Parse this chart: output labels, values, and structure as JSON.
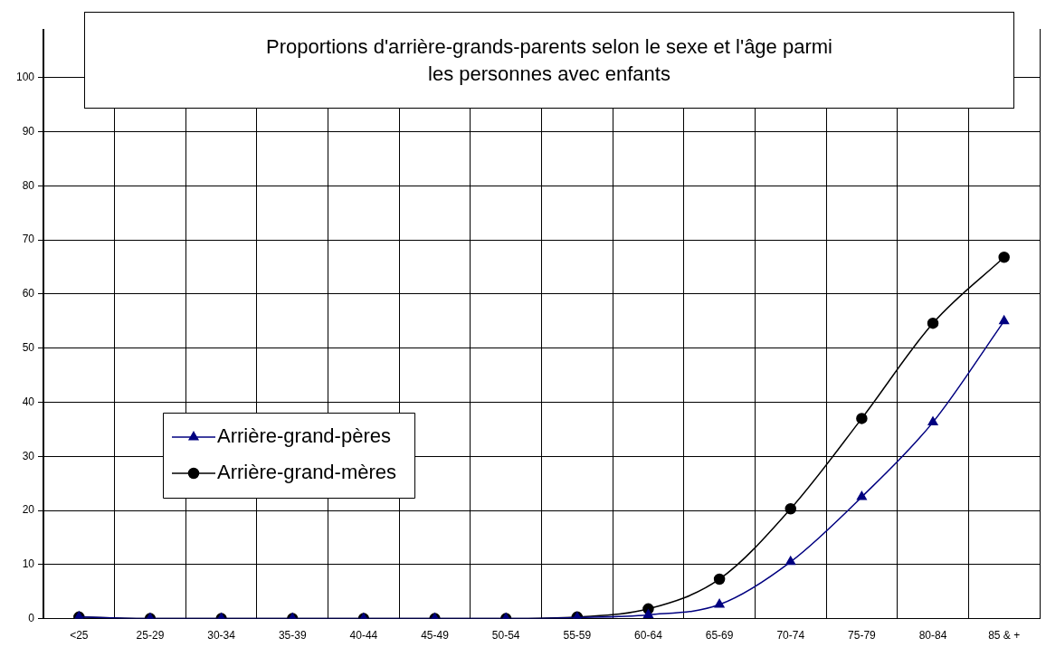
{
  "chart_data": {
    "type": "line",
    "title": "Proportions d'arrière-grands-parents selon le sexe et l'âge parmi les personnes avec enfants",
    "categories": [
      "<25",
      "25-29",
      "30-34",
      "35-39",
      "40-44",
      "45-49",
      "50-54",
      "55-59",
      "60-64",
      "65-69",
      "70-74",
      "75-79",
      "80-84",
      "85 & +"
    ],
    "series": [
      {
        "name": "Arrière-grand-pères",
        "color": "#000080",
        "marker": "triangle",
        "values": [
          0.3,
          0,
          0,
          0,
          0,
          0,
          0,
          0.2,
          0.7,
          2.6,
          10.5,
          22.5,
          36.3,
          55
        ]
      },
      {
        "name": "Arrière-grand-mères",
        "color": "#000000",
        "marker": "circle",
        "values": [
          0.3,
          0,
          0,
          0,
          0,
          0,
          0,
          0.3,
          1.8,
          7.3,
          20.3,
          37,
          54.6,
          66.8
        ]
      }
    ],
    "ylim": [
      0,
      109
    ],
    "yticks": [
      0,
      10,
      20,
      30,
      40,
      50,
      60,
      70,
      80,
      90,
      100
    ],
    "grid": true,
    "legend": "left"
  }
}
